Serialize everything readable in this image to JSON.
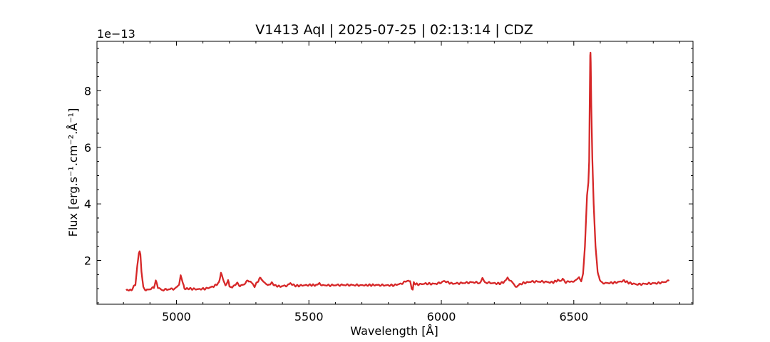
{
  "chart_data": {
    "type": "line",
    "title": "V1413 Aql | 2025-07-25 | 02:13:14 | CDZ",
    "xlabel": "Wavelength [Å]",
    "ylabel": "Flux [erg.s⁻¹.cm⁻².Å⁻¹]",
    "y_offset_label": "1e−13",
    "xlim": [
      4700,
      6950
    ],
    "ylim": [
      0.45,
      9.75
    ],
    "x_ticks": [
      5000,
      5500,
      6000,
      6500
    ],
    "y_ticks": [
      2,
      4,
      6,
      8
    ],
    "grid": false,
    "series": [
      {
        "color": "#d62728",
        "x": [
          4810,
          4830,
          4845,
          4852,
          4858,
          4861,
          4864,
          4868,
          4875,
          4885,
          4900,
          4915,
          4922,
          4930,
          4945,
          4970,
          4995,
          5010,
          5016,
          5022,
          5030,
          5050,
          5080,
          5110,
          5140,
          5160,
          5168,
          5175,
          5185,
          5195,
          5200,
          5210,
          5230,
          5240,
          5255,
          5270,
          5280,
          5295,
          5310,
          5318,
          5328,
          5345,
          5360,
          5375,
          5395,
          5420,
          5430,
          5450,
          5480,
          5510,
          5530,
          5540,
          5550,
          5580,
          5620,
          5660,
          5700,
          5750,
          5790,
          5820,
          5850,
          5875,
          5882,
          5888,
          5892,
          5896,
          5910,
          5940,
          5970,
          5995,
          6010,
          6040,
          6080,
          6120,
          6145,
          6155,
          6165,
          6190,
          6220,
          6240,
          6250,
          6260,
          6275,
          6285,
          6295,
          6310,
          6340,
          6380,
          6420,
          6440,
          6450,
          6458,
          6470,
          6480,
          6500,
          6520,
          6528,
          6535,
          6542,
          6550,
          6555,
          6558,
          6560,
          6562,
          6563,
          6564,
          6566,
          6570,
          6575,
          6582,
          6590,
          6598,
          6605,
          6615,
          6630,
          6660,
          6690,
          6710,
          6740,
          6780,
          6820,
          6850,
          6860
        ],
        "y": [
          0.95,
          0.95,
          1.15,
          1.8,
          2.25,
          2.3,
          2.2,
          1.6,
          1.05,
          0.95,
          0.98,
          1.05,
          1.3,
          1.05,
          0.95,
          0.98,
          1.0,
          1.15,
          1.45,
          1.3,
          1.0,
          1.0,
          0.98,
          1.0,
          1.08,
          1.2,
          1.55,
          1.35,
          1.12,
          1.3,
          1.1,
          1.05,
          1.2,
          1.1,
          1.15,
          1.3,
          1.25,
          1.08,
          1.3,
          1.4,
          1.25,
          1.12,
          1.2,
          1.1,
          1.08,
          1.12,
          1.18,
          1.1,
          1.12,
          1.13,
          1.12,
          1.2,
          1.12,
          1.12,
          1.13,
          1.13,
          1.12,
          1.13,
          1.12,
          1.12,
          1.18,
          1.3,
          1.25,
          1.0,
          0.95,
          1.2,
          1.15,
          1.18,
          1.17,
          1.2,
          1.27,
          1.18,
          1.2,
          1.23,
          1.2,
          1.35,
          1.22,
          1.2,
          1.18,
          1.25,
          1.38,
          1.3,
          1.15,
          1.05,
          1.15,
          1.2,
          1.25,
          1.25,
          1.22,
          1.3,
          1.25,
          1.35,
          1.22,
          1.25,
          1.25,
          1.4,
          1.25,
          1.5,
          2.5,
          4.3,
          4.75,
          5.5,
          7.5,
          9.25,
          9.35,
          9.0,
          7.5,
          5.6,
          4.0,
          2.5,
          1.6,
          1.3,
          1.22,
          1.2,
          1.2,
          1.22,
          1.28,
          1.2,
          1.15,
          1.18,
          1.2,
          1.25,
          1.28
        ]
      }
    ]
  }
}
